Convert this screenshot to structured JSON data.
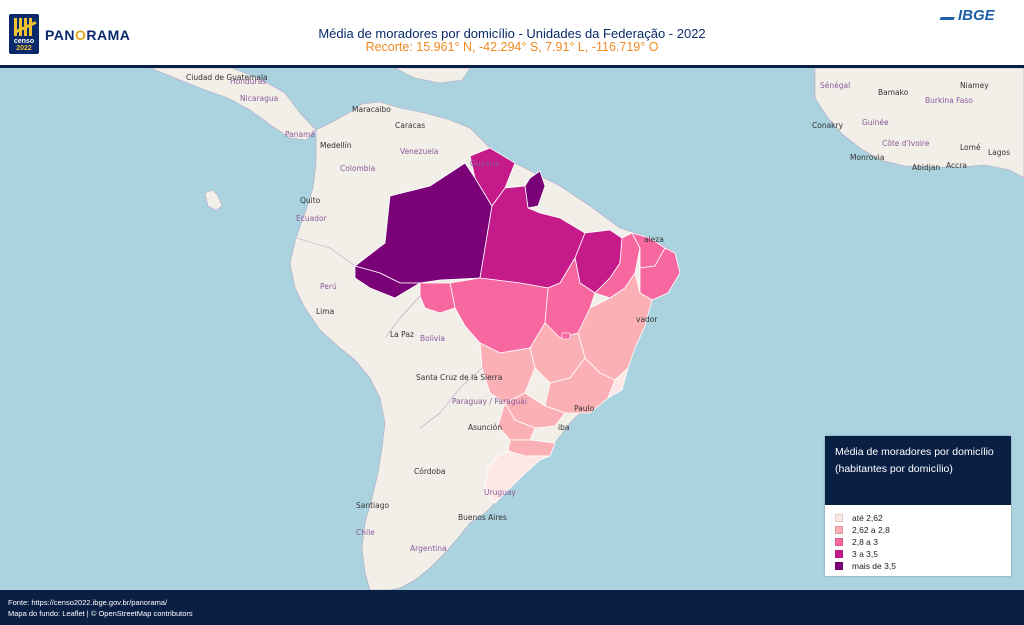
{
  "header": {
    "title": "Média de moradores por domicílio - Unidades da Federação - 2022",
    "subtitle": "Recorte: 15.961° N, -42.294° S, 7.91° L, -116.719° O",
    "logo": {
      "line1": "censo",
      "line2": "2022"
    },
    "brand": {
      "part1": "PAN",
      "part2": "O",
      "part3": "RAMA"
    },
    "ibge_logo": "IBGE"
  },
  "colors": {
    "ocean": "#aad3df",
    "land": "#f2efe9",
    "border": "#b8a6c2",
    "class1": "#fde8e6",
    "class2": "#fbb0b6",
    "class3": "#f768a1",
    "class4": "#c51b8a",
    "class5": "#7a0177",
    "header_bg": "#0a1f44"
  },
  "map_labels": {
    "places": [
      "Ciudad de Guatemala",
      "Maracaibo",
      "Caracas",
      "Medellín",
      "Quito",
      "Lima",
      "La Paz",
      "Santa Cruz de la Sierra",
      "Asunción",
      "Córdoba",
      "Santiago",
      "Buenos Aires",
      "Bamako",
      "Niamey",
      "Conakry",
      "Monrovia",
      "Abidjan",
      "Lomé",
      "Accra",
      "Lagos"
    ],
    "countries": [
      "Honduras",
      "Nicaragua",
      "Panamá",
      "Venezuela",
      "Colombia",
      "Guyana",
      "Ecuador",
      "Perú",
      "Bolivia",
      "Paraguay / Paraguái",
      "Chile",
      "Argentina",
      "Uruguay",
      "Sénégal",
      "Burkina Faso",
      "Guinée",
      "Côte d'Ivoire"
    ],
    "partial": [
      "aleza",
      "vador",
      "Paulo",
      "iba"
    ]
  },
  "legend": {
    "title": "Média de moradores por domicílio (habitantes por domicílio)",
    "items": [
      {
        "label": "até 2,62",
        "color": "#fde8e6"
      },
      {
        "label": "2,62 a 2,8",
        "color": "#fbb0b6"
      },
      {
        "label": "2,8 a 3",
        "color": "#f768a1"
      },
      {
        "label": "3 a 3,5",
        "color": "#c51b8a"
      },
      {
        "label": "mais de 3,5",
        "color": "#7a0177"
      }
    ]
  },
  "footer": {
    "source": "Fonte: https://censo2022.ibge.gov.br/panorama/",
    "basemap": "Mapa do fundo: Leaflet | © OpenStreetMap contributors"
  }
}
